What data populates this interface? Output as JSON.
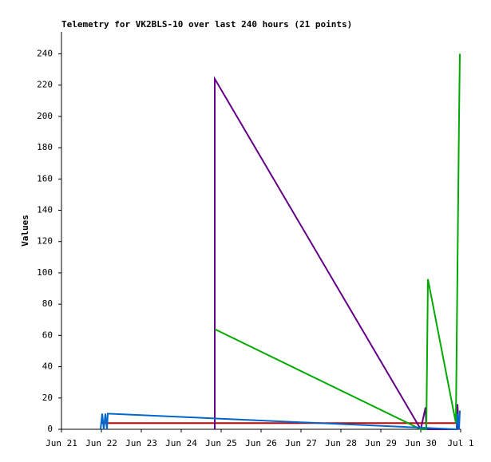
{
  "chart_data": {
    "type": "line",
    "title": "Telemetry for VK2BLS-10 over last 240 hours (21 points)",
    "y_label": "Values",
    "xlim": [
      0,
      10
    ],
    "xticks": [
      {
        "value": 0,
        "label": "Jun 21"
      },
      {
        "value": 1,
        "label": "Jun 22"
      },
      {
        "value": 2,
        "label": "Jun 23"
      },
      {
        "value": 3,
        "label": "Jun 24"
      },
      {
        "value": 4,
        "label": "Jun 25"
      },
      {
        "value": 5,
        "label": "Jun 26"
      },
      {
        "value": 6,
        "label": "Jun 27"
      },
      {
        "value": 7,
        "label": "Jun 28"
      },
      {
        "value": 8,
        "label": "Jun 29"
      },
      {
        "value": 9,
        "label": "Jun 30"
      },
      {
        "value": 10,
        "label": "Jul 1"
      }
    ],
    "ylim": [
      0,
      254
    ],
    "yticks": [
      0,
      20,
      40,
      60,
      80,
      100,
      120,
      140,
      160,
      180,
      200,
      220,
      240
    ],
    "series": [
      {
        "color": "#cc0000",
        "x": [
          1.0,
          9.92,
          9.92,
          9.94
        ],
        "values": [
          4,
          4,
          16,
          4
        ]
      },
      {
        "color": "#660088",
        "x": [
          3.84,
          3.84,
          9.0,
          9.12,
          9.14,
          9.9,
          9.92,
          9.94
        ],
        "values": [
          0,
          224,
          0,
          14,
          0,
          0,
          16,
          0
        ]
      },
      {
        "color": "#00aa00",
        "x": [
          3.84,
          9.0,
          9.14,
          9.18,
          9.88,
          9.96,
          9.98
        ],
        "values": [
          64,
          0,
          0,
          96,
          4,
          200,
          240
        ]
      },
      {
        "color": "#0066cc",
        "x": [
          0.98,
          1.02,
          1.06,
          1.1,
          1.14,
          1.16,
          9.9,
          9.92,
          9.96,
          9.98
        ],
        "values": [
          0,
          10,
          0,
          10,
          0,
          10,
          0,
          10,
          0,
          12
        ]
      }
    ]
  }
}
